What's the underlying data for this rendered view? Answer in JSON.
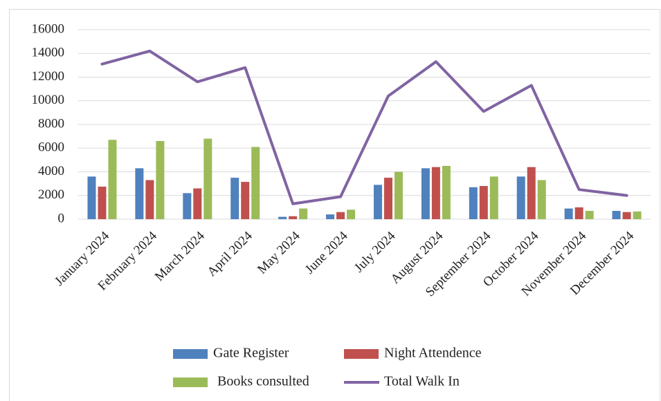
{
  "chart_data": {
    "type": "bar_line",
    "categories": [
      "January 2024",
      "February 2024",
      "March 2024",
      "April 2024",
      "May 2024",
      "June 2024",
      "July 2024",
      "August 2024",
      "September 2024",
      "October 2024",
      "November 2024",
      "December 2024"
    ],
    "series": [
      {
        "name": "Gate Register",
        "color": "#4f81bd",
        "kind": "bar",
        "values": [
          3600,
          4300,
          2200,
          3500,
          200,
          400,
          2900,
          4300,
          2700,
          3600,
          900,
          700
        ]
      },
      {
        "name": "Night Attendence",
        "color": "#c0504d",
        "kind": "bar",
        "values": [
          2750,
          3300,
          2600,
          3150,
          250,
          600,
          3500,
          4400,
          2800,
          4400,
          1000,
          600
        ]
      },
      {
        "name": "Books consulted",
        "color": "#9bbb59",
        "kind": "bar",
        "values": [
          6700,
          6600,
          6800,
          6100,
          900,
          800,
          4000,
          4500,
          3600,
          3300,
          700,
          650
        ]
      },
      {
        "name": "Total Walk In",
        "color": "#8064a2",
        "kind": "line",
        "values": [
          13100,
          14200,
          11600,
          12800,
          1300,
          1900,
          10400,
          13300,
          9100,
          11300,
          2500,
          2000
        ]
      }
    ],
    "ylim": [
      0,
      16000
    ],
    "yticks": [
      0,
      2000,
      4000,
      6000,
      8000,
      10000,
      12000,
      14000,
      16000
    ],
    "grid": true,
    "legend": "bottom"
  }
}
